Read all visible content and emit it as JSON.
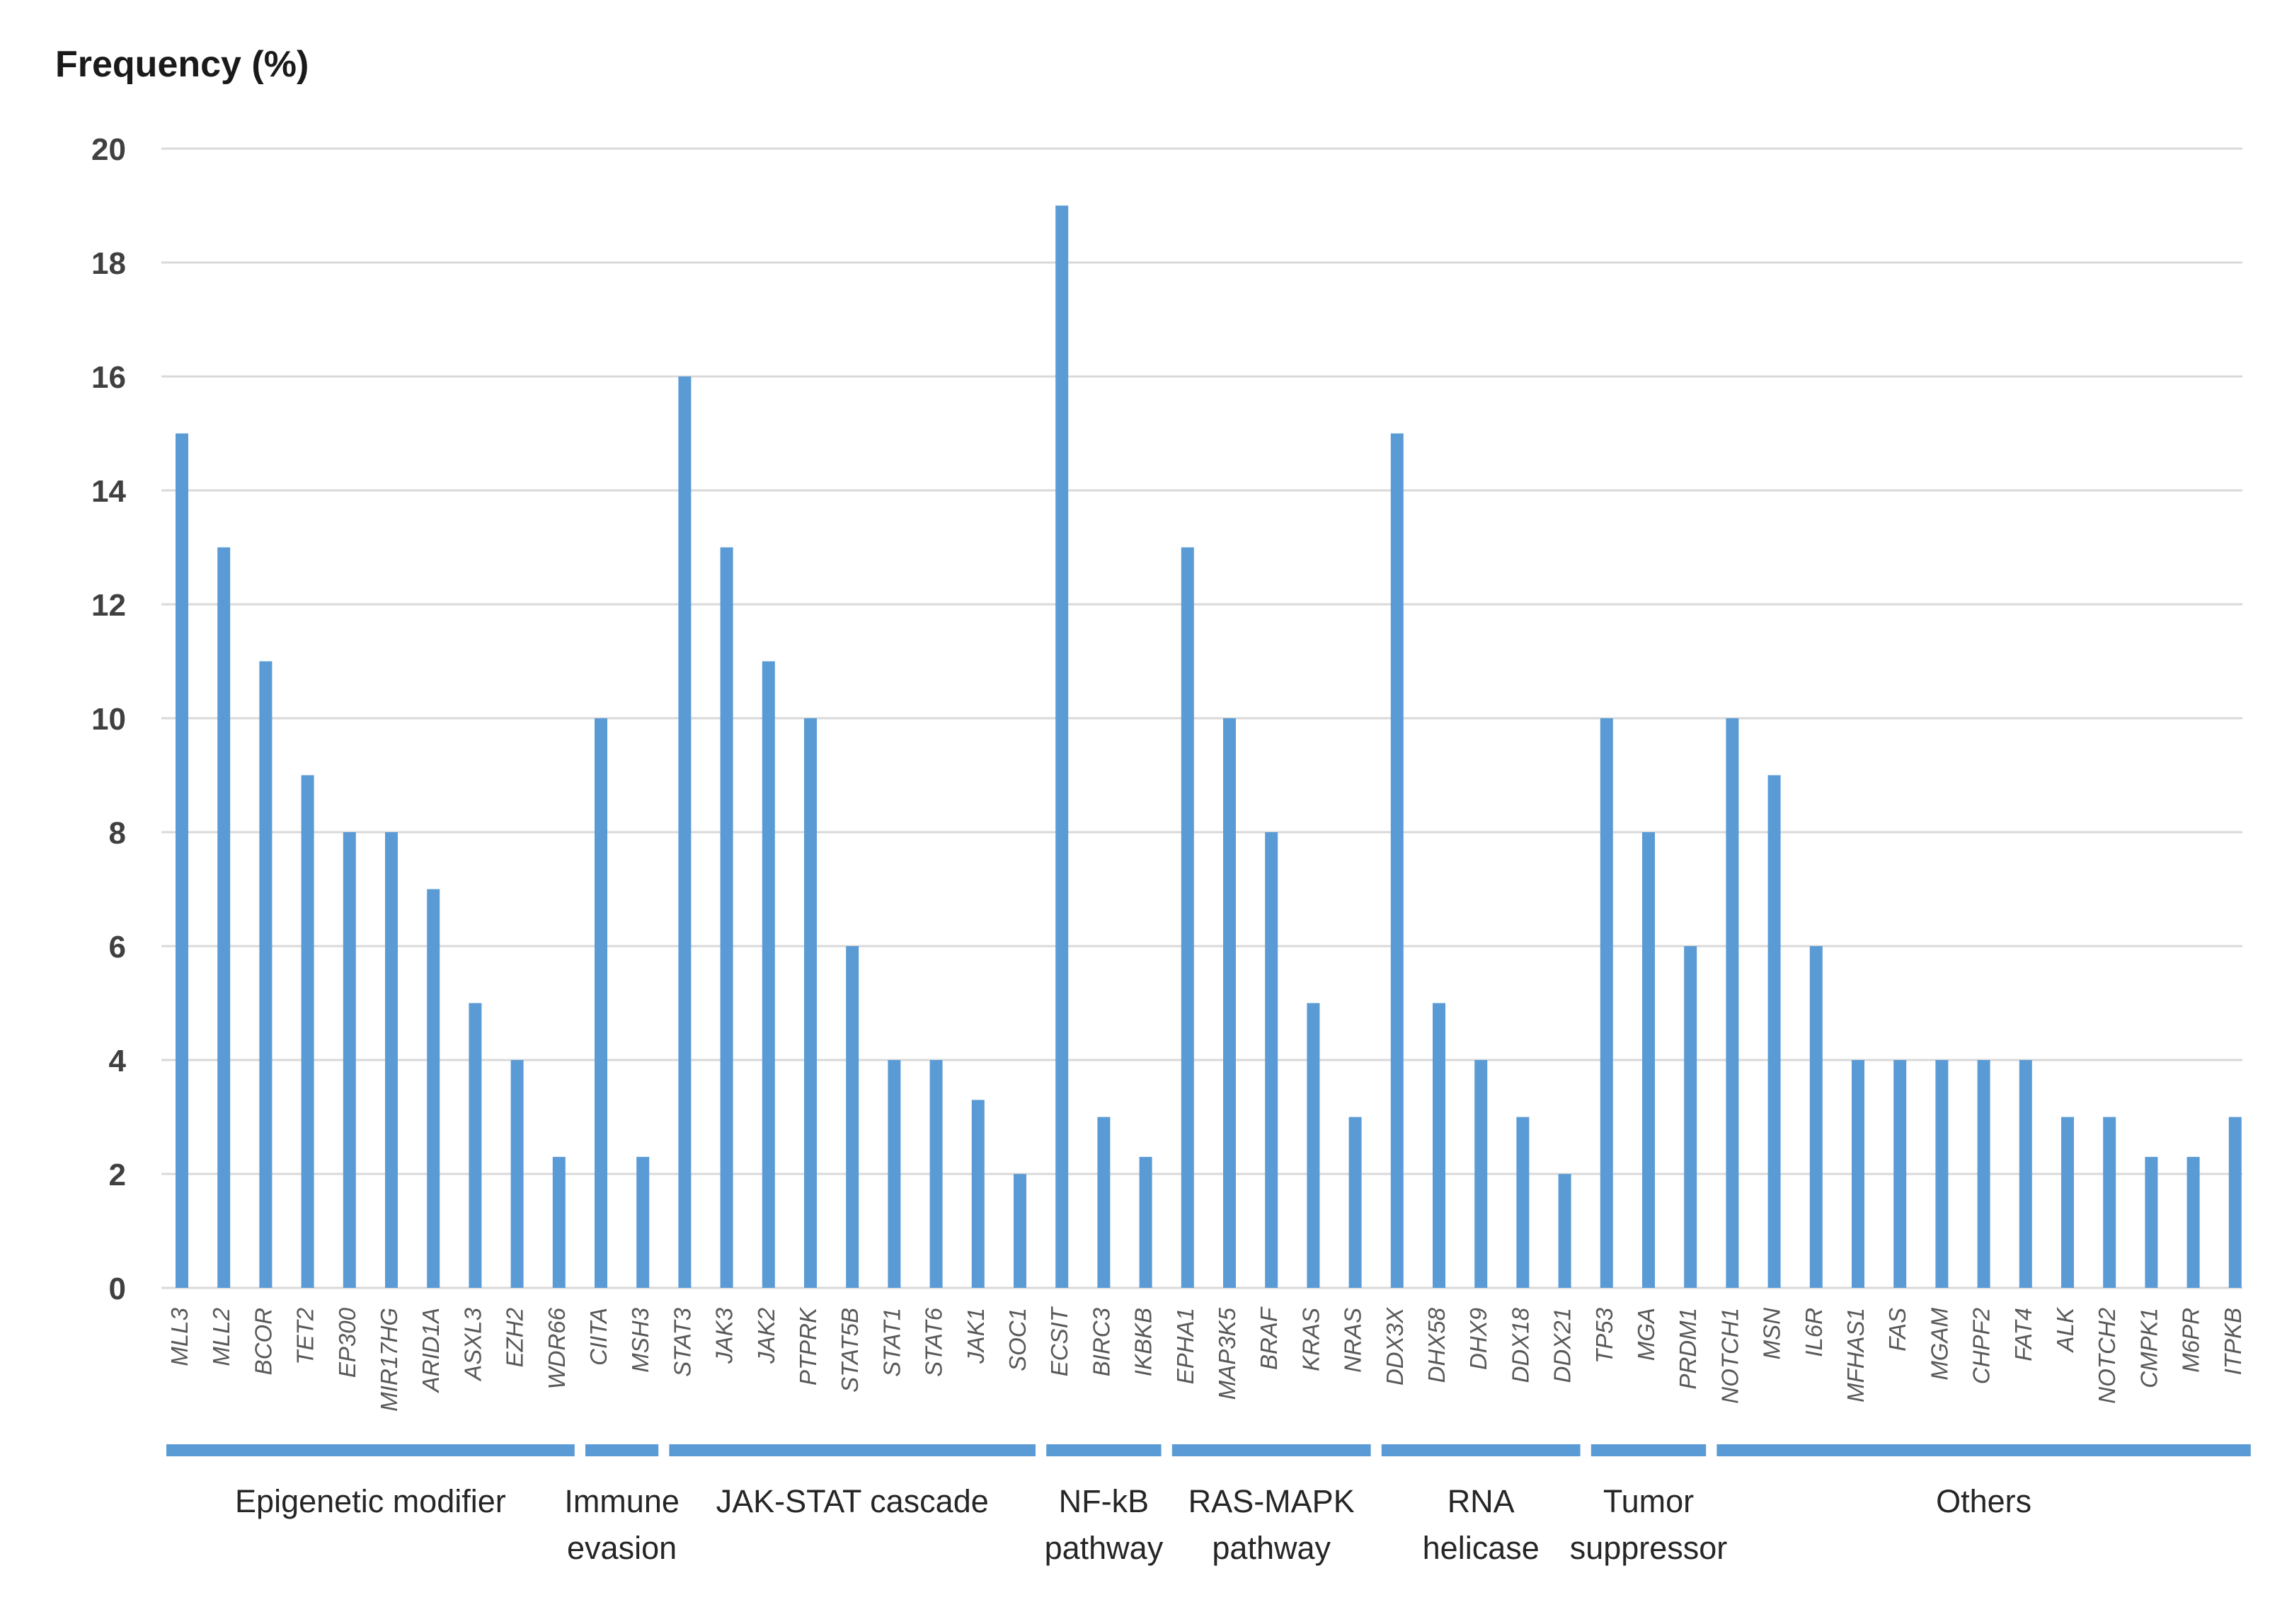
{
  "chart_data": {
    "type": "bar",
    "title": "",
    "ylabel": "Frequency (%)",
    "xlabel": "",
    "ylim": [
      0,
      20
    ],
    "yticks": [
      0,
      2,
      4,
      6,
      8,
      10,
      12,
      14,
      16,
      18,
      20
    ],
    "grid": true,
    "colors": {
      "bar": "#5b9bd5",
      "grid": "#d9d9d9",
      "group_bar": "#5b9bd5"
    },
    "categories": [
      "MLL3",
      "MLL2",
      "BCOR",
      "TET2",
      "EP300",
      "MIR17HG",
      "ARID1A",
      "ASXL3",
      "EZH2",
      "WDR66",
      "CIITA",
      "MSH3",
      "STAT3",
      "JAK3",
      "JAK2",
      "PTPRK",
      "STAT5B",
      "STAT1",
      "STAT6",
      "JAK1",
      "SOC1",
      "ECSIT",
      "BIRC3",
      "IKBKB",
      "EPHA1",
      "MAP3K5",
      "BRAF",
      "KRAS",
      "NRAS",
      "DDX3X",
      "DHX58",
      "DHX9",
      "DDX18",
      "DDX21",
      "TP53",
      "MGA",
      "PRDM1",
      "NOTCH1",
      "MSN",
      "IL6R",
      "MFHAS1",
      "FAS",
      "MGAM",
      "CHPF2",
      "FAT4",
      "ALK",
      "NOTCH2",
      "CMPK1",
      "M6PR",
      "ITPKB"
    ],
    "values": [
      15,
      13,
      11,
      9,
      8,
      8,
      7,
      5,
      4,
      2.3,
      10,
      2.3,
      16,
      13,
      11,
      10,
      6,
      4,
      4,
      3.3,
      2,
      19,
      3,
      2.3,
      13,
      10,
      8,
      5,
      3,
      15,
      5,
      4,
      3,
      2,
      10,
      8,
      6,
      10,
      9,
      6,
      4,
      4,
      4,
      4,
      4,
      3,
      3,
      2.3,
      2.3,
      3
    ],
    "groups": [
      {
        "lines": [
          "Epigenetic modifier"
        ],
        "start": 0,
        "end": 9
      },
      {
        "lines": [
          "Immune",
          "evasion"
        ],
        "start": 10,
        "end": 11
      },
      {
        "lines": [
          "JAK-STAT cascade"
        ],
        "start": 12,
        "end": 20
      },
      {
        "lines": [
          "NF-kB",
          "pathway"
        ],
        "start": 21,
        "end": 23
      },
      {
        "lines": [
          "RAS-MAPK",
          "pathway"
        ],
        "start": 24,
        "end": 28
      },
      {
        "lines": [
          "RNA",
          "helicase"
        ],
        "start": 29,
        "end": 33
      },
      {
        "lines": [
          "Tumor",
          "suppressor"
        ],
        "start": 34,
        "end": 36
      },
      {
        "lines": [
          "Others"
        ],
        "start": 37,
        "end": 49
      }
    ]
  }
}
